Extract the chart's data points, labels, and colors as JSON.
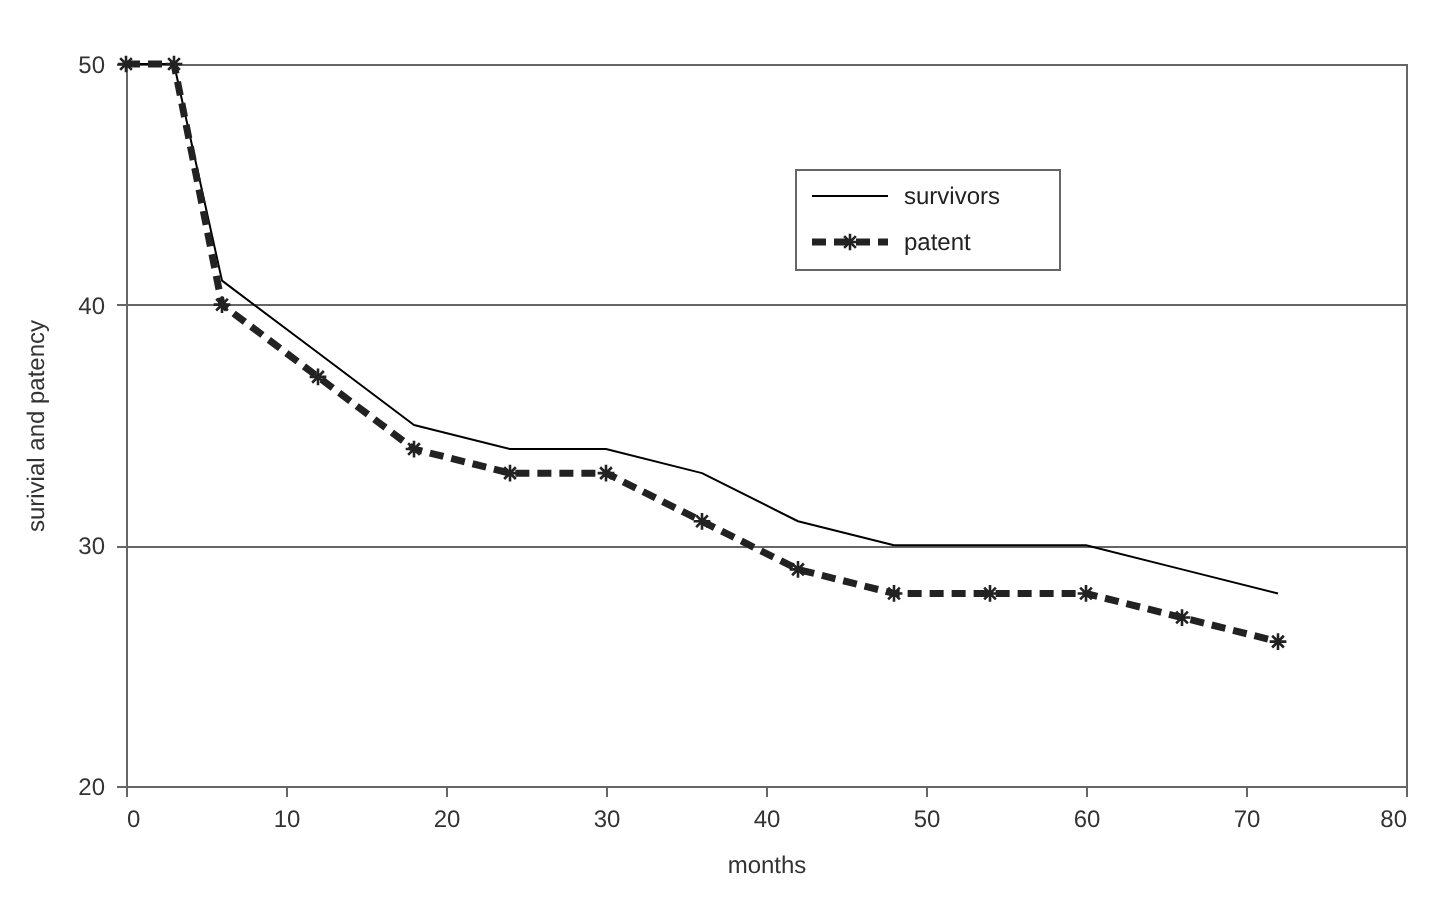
{
  "chart_data": {
    "type": "line",
    "xlabel": "months",
    "ylabel": "surivial and patency",
    "x": [
      0,
      3,
      6,
      12,
      18,
      24,
      30,
      36,
      42,
      48,
      54,
      60,
      66,
      72
    ],
    "series": [
      {
        "name": "survivors",
        "color": "#000000",
        "values": [
          50,
          50,
          41,
          38,
          35,
          34,
          34,
          33,
          31,
          30,
          30,
          30,
          29,
          28
        ],
        "marker": "none",
        "line_style": "solid"
      },
      {
        "name": "patent",
        "color": "#222222",
        "values": [
          50,
          50,
          40,
          37,
          34,
          33,
          33,
          31,
          29,
          28,
          28,
          28,
          27,
          26
        ],
        "marker": "cross",
        "line_style": "dashed"
      }
    ],
    "xlim": [
      0,
      80
    ],
    "xticks": [
      0,
      10,
      20,
      30,
      40,
      50,
      60,
      70,
      80
    ],
    "ylim": [
      20,
      50
    ],
    "yticks": [
      20,
      30,
      40,
      50
    ],
    "grid": "y",
    "legend": "top right"
  }
}
